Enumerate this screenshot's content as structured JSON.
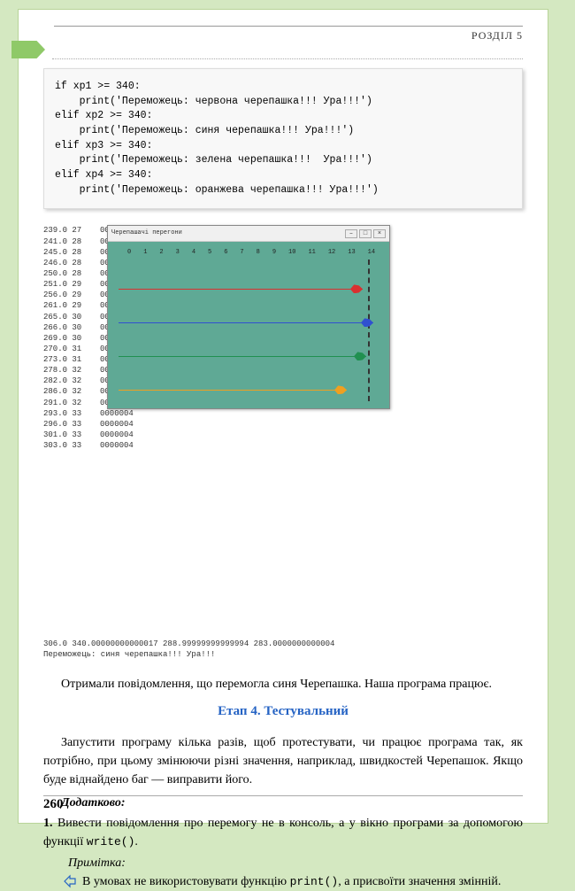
{
  "header": {
    "section_label": "РОЗДІЛ 5"
  },
  "code_block": "if xp1 >= 340:\n    print('Переможець: червона черепашка!!! Ура!!!')\nelif xp2 >= 340:\n    print('Переможець: синя черепашка!!! Ура!!!')\nelif xp3 >= 340:\n    print('Переможець: зелена черепашка!!!  Ура!!!')\nelif xp4 >= 340:\n    print('Переможець: оранжева черепашка!!! Ура!!!')",
  "output": {
    "left_numbers": [
      "239.0 27",
      "241.0 28",
      "245.0 28",
      "246.0 28",
      "250.0 28",
      "251.0 29",
      "256.0 29",
      "261.0 29",
      "265.0 30",
      "266.0 30",
      "269.0 30",
      "270.0 31",
      "273.0 31",
      "278.0 32",
      "282.0 32",
      "286.0 32",
      "291.0 32",
      "293.0 33",
      "296.0 33",
      "301.0 33",
      "303.0 33"
    ],
    "right_numbers": [
      "0000037",
      "0000037",
      "0000037",
      "0000037",
      "0000037",
      "0000037",
      "0000037",
      "0000037",
      "0000037",
      "0000037",
      "0000004",
      "0000004",
      "0000004",
      "0000004",
      "0000004",
      "0000004",
      "0000004",
      "0000004",
      "0000004",
      "0000004",
      "0000004"
    ],
    "turtle_window": {
      "title": "Черепашачі перегони",
      "axis": [
        "0",
        "1",
        "2",
        "3",
        "4",
        "5",
        "6",
        "7",
        "8",
        "9",
        "10",
        "11",
        "12",
        "13",
        "14"
      ],
      "turtles": [
        {
          "name": "red",
          "color": "#d93030"
        },
        {
          "name": "blue",
          "color": "#3050d0"
        },
        {
          "name": "green",
          "color": "#209050"
        },
        {
          "name": "orange",
          "color": "#f0a020"
        }
      ]
    },
    "bottom_line1": "306.0  340.00000000000017 288.99999999999994  283.0000000000004",
    "bottom_line2": "Переможець: синя черепашка!!! Ура!!!"
  },
  "paragraphs": {
    "p1": "Отримали повідомлення, що перемогла синя Черепашка. Наша програма працює.",
    "stage_heading": "Етап 4. Тестувальний",
    "p2": "Запустити програму кілька разів, щоб протестувати, чи працює програма так, як потрібно, при цьому змінюючи різні значення, наприклад, швидкостей Черепашок. Якщо буде віднайдено баг — виправити його.",
    "additional_label": "Додатково:",
    "list1_num": "1.",
    "list1_text": "Вивести повідомлення про перемогу не в консоль, а у вікно програми за допомогою функції ",
    "list1_code": "write()",
    "list1_end": ".",
    "note_label": "Примітка:",
    "note_text_a": "В умовах не використовувати функцію ",
    "note_code": "print()",
    "note_text_b": ", а присвоїти значення змінній."
  },
  "page_number": "260",
  "colors": {
    "page_bg": "#d4e8c1",
    "inner_bg": "#ffffff",
    "tab": "#8fc968",
    "heading": "#2563c4",
    "canvas": "#5fa995"
  }
}
